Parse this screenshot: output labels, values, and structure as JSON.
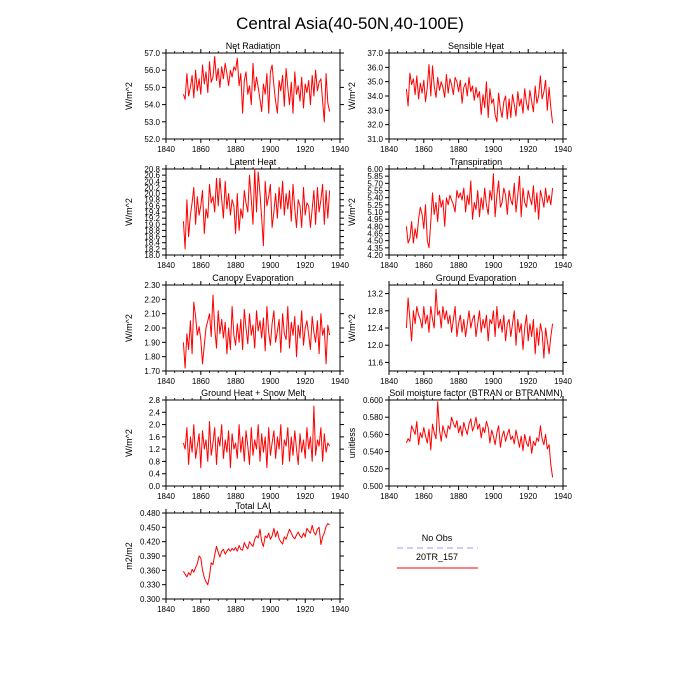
{
  "figure": {
    "title": "Central Asia(40-50N,40-100E)"
  },
  "chart_data": [
    {
      "type": "line",
      "title": "Net Radiation",
      "ylabel": "W/m^2",
      "xlim": [
        1840,
        1940
      ],
      "xticks": [
        1840,
        1860,
        1880,
        1900,
        1920,
        1940
      ],
      "ylim": [
        52.0,
        57.0
      ],
      "yticks": [
        "52.0",
        "53.0",
        "54.0",
        "55.0",
        "56.0",
        "57.0"
      ],
      "x_start": 1850,
      "series": [
        {
          "name": "20TR_157",
          "color": "#ff0000",
          "values": [
            54.6,
            54.3,
            55.8,
            54.5,
            55.0,
            55.7,
            54.4,
            56.0,
            54.8,
            55.5,
            54.6,
            56.3,
            55.2,
            55.9,
            54.7,
            56.5,
            55.3,
            55.6,
            56.8,
            55.4,
            56.1,
            55.0,
            56.2,
            55.5,
            56.4,
            55.8,
            55.1,
            56.0,
            55.6,
            56.2,
            56.0,
            56.7,
            55.1,
            55.8,
            53.5,
            55.4,
            55.9,
            54.6,
            55.1,
            54.0,
            56.4,
            54.8,
            55.6,
            55.0,
            54.3,
            53.6,
            55.2,
            54.6,
            55.8,
            53.5,
            55.9,
            56.3,
            55.1,
            54.2,
            53.5,
            55.4,
            54.8,
            55.7,
            53.9,
            56.1,
            55.0,
            54.0,
            55.3,
            53.5,
            55.9,
            54.6,
            55.1,
            54.2,
            55.6,
            53.8,
            55.2,
            54.7,
            55.4,
            54.0,
            55.7,
            54.5,
            56.0,
            54.8,
            55.3,
            55.5,
            54.2,
            53.0,
            55.8,
            54.1,
            53.6
          ]
        }
      ]
    },
    {
      "type": "line",
      "title": "Sensible Heat",
      "ylabel": "W/m^2",
      "xlim": [
        1840,
        1940
      ],
      "xticks": [
        1840,
        1860,
        1880,
        1900,
        1920,
        1940
      ],
      "ylim": [
        31.0,
        37.0
      ],
      "yticks": [
        "31.0",
        "32.0",
        "33.0",
        "34.0",
        "35.0",
        "36.0",
        "37.0"
      ],
      "x_start": 1850,
      "series": [
        {
          "name": "20TR_157",
          "color": "#ff0000",
          "values": [
            34.5,
            33.3,
            35.6,
            34.8,
            35.2,
            34.1,
            35.4,
            33.8,
            34.9,
            34.2,
            35.1,
            33.6,
            34.6,
            36.2,
            34.0,
            36.1,
            34.7,
            33.9,
            35.3,
            34.4,
            35.0,
            34.6,
            33.9,
            35.5,
            34.2,
            35.2,
            34.8,
            34.1,
            35.3,
            35.0,
            34.3,
            35.1,
            33.5,
            34.6,
            34.9,
            34.0,
            35.3,
            34.3,
            34.7,
            33.7,
            34.6,
            33.9,
            34.3,
            32.7,
            34.1,
            33.2,
            35.0,
            32.5,
            34.5,
            33.5,
            33.8,
            32.7,
            32.2,
            34.2,
            33.1,
            32.5,
            33.6,
            34.0,
            32.4,
            33.8,
            32.5,
            34.1,
            33.4,
            32.6,
            34.3,
            33.3,
            33.8,
            32.8,
            34.5,
            33.5,
            33.0,
            34.4,
            33.6,
            32.9,
            34.7,
            33.5,
            34.0,
            35.4,
            33.8,
            34.3,
            35.1,
            33.0,
            34.6,
            33.2,
            32.1
          ]
        }
      ]
    },
    {
      "type": "line",
      "title": "Latent Heat",
      "ylabel": "W/m^2",
      "xlim": [
        1840,
        1940
      ],
      "xticks": [
        1840,
        1860,
        1880,
        1900,
        1920,
        1940
      ],
      "ylim": [
        18.0,
        20.8
      ],
      "yticks": [
        "18.0",
        "18.2",
        "18.4",
        "18.6",
        "18.8",
        "19.0",
        "19.2",
        "19.4",
        "19.6",
        "19.8",
        "20.0",
        "20.2",
        "20.4",
        "20.6",
        "20.8"
      ],
      "x_start": 1850,
      "series": [
        {
          "name": "20TR_157",
          "color": "#ff0000",
          "values": [
            19.1,
            18.2,
            19.8,
            18.6,
            19.3,
            19.7,
            20.2,
            19.0,
            19.9,
            19.3,
            19.6,
            20.1,
            18.7,
            19.5,
            19.2,
            20.3,
            19.7,
            19.9,
            19.4,
            20.5,
            19.6,
            20.5,
            19.8,
            19.2,
            20.4,
            19.5,
            20.0,
            19.3,
            19.8,
            19.6,
            18.7,
            20.0,
            18.8,
            19.5,
            19.2,
            20.1,
            19.7,
            19.4,
            20.6,
            19.8,
            19.0,
            20.8,
            19.4,
            20.7,
            20.0,
            19.2,
            18.3,
            20.4,
            19.6,
            19.9,
            20.3,
            18.9,
            19.4,
            20.0,
            19.2,
            20.2,
            19.5,
            20.4,
            19.3,
            20.0,
            19.5,
            20.1,
            19.1,
            20.3,
            19.5,
            18.9,
            19.8,
            19.6,
            18.9,
            20.2,
            19.3,
            19.7,
            19.6,
            18.9,
            19.5,
            20.1,
            19.0,
            20.2,
            19.4,
            19.8,
            20.3,
            19.0,
            20.1,
            19.2,
            20.1
          ]
        }
      ]
    },
    {
      "type": "line",
      "title": "Transpiration",
      "ylabel": "W/m^2",
      "xlim": [
        1840,
        1940
      ],
      "xticks": [
        1840,
        1860,
        1880,
        1900,
        1920,
        1940
      ],
      "ylim": [
        4.2,
        6.0
      ],
      "yticks": [
        "4.20",
        "4.35",
        "4.50",
        "4.65",
        "4.80",
        "4.95",
        "5.10",
        "5.25",
        "5.40",
        "5.55",
        "5.70",
        "5.85",
        "6.00"
      ],
      "x_start": 1850,
      "series": [
        {
          "name": "20TR_157",
          "color": "#ff0000",
          "values": [
            4.8,
            4.45,
            4.55,
            4.9,
            4.45,
            4.75,
            4.55,
            4.95,
            5.2,
            5.05,
            4.75,
            5.25,
            4.5,
            4.35,
            4.9,
            5.5,
            5.05,
            5.3,
            4.9,
            5.45,
            5.2,
            5.35,
            4.8,
            5.4,
            5.25,
            5.45,
            5.35,
            5.25,
            5.1,
            5.55,
            5.4,
            5.5,
            5.35,
            5.6,
            5.1,
            5.45,
            5.25,
            5.75,
            4.95,
            5.3,
            5.15,
            5.55,
            5.0,
            5.4,
            5.15,
            5.6,
            5.25,
            5.05,
            5.55,
            5.35,
            5.9,
            5.0,
            5.45,
            5.75,
            5.2,
            5.3,
            5.6,
            5.45,
            5.05,
            5.55,
            5.35,
            5.25,
            5.7,
            5.1,
            5.45,
            5.85,
            5.0,
            5.6,
            5.3,
            5.2,
            5.55,
            5.4,
            5.25,
            5.65,
            5.1,
            5.5,
            4.95,
            5.55,
            5.4,
            5.2,
            5.6,
            5.3,
            5.45,
            5.25,
            5.6
          ]
        }
      ]
    },
    {
      "type": "line",
      "title": "Canopy Evaporation",
      "ylabel": "W/m^2",
      "xlim": [
        1840,
        1940
      ],
      "xticks": [
        1840,
        1860,
        1880,
        1900,
        1920,
        1940
      ],
      "ylim": [
        1.7,
        2.3
      ],
      "yticks": [
        "1.70",
        "1.80",
        "1.90",
        "2.00",
        "2.10",
        "2.20",
        "2.30"
      ],
      "x_start": 1850,
      "series": [
        {
          "name": "20TR_157",
          "color": "#ff0000",
          "values": [
            1.9,
            1.72,
            1.96,
            1.85,
            2.05,
            1.82,
            2.18,
            2.08,
            1.95,
            2.01,
            1.92,
            1.75,
            1.88,
            2.0,
            2.05,
            2.1,
            1.94,
            2.23,
            2.0,
            1.86,
            2.12,
            1.96,
            2.06,
            1.93,
            2.04,
            1.82,
            2.0,
            1.85,
            2.15,
            1.95,
            1.88,
            2.03,
            1.9,
            2.06,
            1.85,
            2.13,
            2.0,
            1.89,
            2.1,
            1.95,
            2.02,
            1.86,
            2.12,
            1.98,
            2.05,
            1.93,
            2.07,
            1.84,
            2.15,
            1.97,
            1.88,
            2.03,
            2.12,
            1.9,
            1.98,
            2.06,
            1.83,
            2.1,
            1.96,
            1.92,
            2.15,
            1.86,
            2.04,
            1.95,
            2.08,
            1.8,
            2.02,
            1.93,
            2.12,
            1.88,
            2.0,
            2.05,
            1.95,
            1.85,
            2.08,
            1.97,
            1.9,
            2.05,
            1.82,
            2.1,
            1.95,
            2.0,
            1.75,
            2.02,
            1.95
          ]
        }
      ]
    },
    {
      "type": "line",
      "title": "Ground Evaporation",
      "ylabel": "W/m^2",
      "xlim": [
        1840,
        1940
      ],
      "xticks": [
        1840,
        1860,
        1880,
        1900,
        1920,
        1940
      ],
      "ylim": [
        11.4,
        13.4
      ],
      "yticks": [
        "11.6",
        "12.0",
        "12.4",
        "12.8",
        "13.2"
      ],
      "x_start": 1850,
      "series": [
        {
          "name": "20TR_157",
          "color": "#ff0000",
          "values": [
            12.4,
            13.1,
            12.6,
            12.1,
            12.8,
            12.5,
            12.9,
            12.7,
            12.6,
            12.4,
            12.9,
            12.5,
            12.7,
            12.3,
            12.9,
            12.6,
            12.4,
            13.3,
            12.7,
            12.8,
            12.4,
            12.9,
            12.6,
            12.8,
            12.5,
            12.7,
            12.3,
            12.6,
            12.9,
            12.2,
            12.5,
            12.7,
            12.3,
            12.6,
            12.2,
            12.5,
            12.8,
            12.4,
            12.6,
            12.7,
            12.2,
            12.5,
            12.8,
            12.3,
            12.6,
            12.4,
            12.7,
            12.1,
            12.6,
            12.5,
            12.8,
            12.2,
            12.9,
            12.4,
            12.6,
            12.3,
            12.7,
            12.1,
            12.5,
            12.6,
            12.2,
            12.5,
            12.8,
            12.0,
            12.6,
            12.3,
            12.5,
            11.9,
            12.4,
            12.7,
            12.1,
            12.5,
            12.2,
            12.6,
            11.8,
            12.4,
            12.0,
            12.5,
            12.3,
            11.7,
            12.4,
            12.1,
            11.8,
            12.2,
            12.5
          ]
        }
      ]
    },
    {
      "type": "line",
      "title": "Ground Heat + Snow Melt",
      "ylabel": "W/m^2",
      "xlim": [
        1840,
        1940
      ],
      "xticks": [
        1840,
        1860,
        1880,
        1900,
        1920,
        1940
      ],
      "ylim": [
        0.0,
        2.8
      ],
      "yticks": [
        "0.0",
        "0.4",
        "0.8",
        "1.2",
        "1.6",
        "2.0",
        "2.4",
        "2.8"
      ],
      "x_start": 1850,
      "series": [
        {
          "name": "20TR_157",
          "color": "#ff0000",
          "values": [
            1.4,
            1.2,
            1.9,
            0.7,
            1.6,
            1.1,
            2.0,
            0.9,
            1.3,
            1.7,
            0.6,
            1.8,
            1.2,
            1.5,
            0.8,
            2.1,
            1.0,
            1.4,
            1.9,
            0.7,
            1.6,
            1.3,
            2.0,
            0.9,
            1.5,
            1.1,
            1.8,
            0.6,
            1.7,
            1.2,
            1.4,
            0.9,
            2.0,
            1.1,
            1.6,
            0.8,
            1.8,
            1.3,
            0.7,
            1.9,
            1.0,
            1.5,
            1.2,
            2.0,
            0.8,
            1.7,
            1.1,
            1.6,
            0.6,
            1.9,
            1.0,
            1.4,
            1.8,
            0.9,
            1.6,
            1.2,
            2.0,
            0.7,
            1.5,
            1.3,
            1.9,
            0.8,
            1.6,
            1.0,
            1.8,
            1.2,
            0.7,
            1.7,
            1.1,
            1.5,
            0.9,
            1.9,
            1.2,
            1.6,
            0.8,
            2.6,
            1.0,
            1.5,
            1.3,
            1.9,
            0.8,
            1.7,
            1.1,
            1.4,
            1.3
          ]
        }
      ]
    },
    {
      "type": "line",
      "title": "Soil moisture factor (BTRAN or BTRANMN)",
      "ylabel": "unitless",
      "xlim": [
        1840,
        1940
      ],
      "xticks": [
        1840,
        1860,
        1880,
        1900,
        1920,
        1940
      ],
      "ylim": [
        0.5,
        0.6
      ],
      "yticks": [
        "0.500",
        "0.520",
        "0.540",
        "0.560",
        "0.580",
        "0.600"
      ],
      "x_start": 1850,
      "series": [
        {
          "name": "20TR_157",
          "color": "#ff0000",
          "values": [
            0.55,
            0.555,
            0.552,
            0.57,
            0.565,
            0.56,
            0.575,
            0.548,
            0.562,
            0.556,
            0.568,
            0.558,
            0.55,
            0.566,
            0.542,
            0.572,
            0.562,
            0.555,
            0.598,
            0.565,
            0.552,
            0.57,
            0.562,
            0.556,
            0.57,
            0.566,
            0.58,
            0.573,
            0.568,
            0.576,
            0.562,
            0.57,
            0.558,
            0.574,
            0.566,
            0.56,
            0.572,
            0.578,
            0.564,
            0.57,
            0.58,
            0.566,
            0.572,
            0.556,
            0.568,
            0.562,
            0.575,
            0.568,
            0.55,
            0.565,
            0.558,
            0.548,
            0.562,
            0.57,
            0.545,
            0.558,
            0.564,
            0.552,
            0.56,
            0.566,
            0.554,
            0.558,
            0.549,
            0.565,
            0.555,
            0.545,
            0.558,
            0.541,
            0.56,
            0.55,
            0.546,
            0.558,
            0.538,
            0.552,
            0.547,
            0.556,
            0.552,
            0.57,
            0.555,
            0.548,
            0.56,
            0.543,
            0.548,
            0.525,
            0.51
          ]
        }
      ]
    },
    {
      "type": "line",
      "title": "Total LAI",
      "ylabel": "m2/m2",
      "xlim": [
        1840,
        1940
      ],
      "xticks": [
        1840,
        1860,
        1880,
        1900,
        1920,
        1940
      ],
      "ylim": [
        0.3,
        0.48
      ],
      "yticks": [
        "0.300",
        "0.330",
        "0.360",
        "0.390",
        "0.420",
        "0.450",
        "0.480"
      ],
      "x_start": 1850,
      "series": [
        {
          "name": "20TR_157",
          "color": "#ff0000",
          "values": [
            0.358,
            0.352,
            0.346,
            0.355,
            0.35,
            0.362,
            0.356,
            0.366,
            0.374,
            0.39,
            0.386,
            0.36,
            0.345,
            0.336,
            0.33,
            0.348,
            0.376,
            0.372,
            0.392,
            0.41,
            0.398,
            0.388,
            0.4,
            0.404,
            0.394,
            0.4,
            0.405,
            0.4,
            0.406,
            0.402,
            0.408,
            0.4,
            0.412,
            0.404,
            0.402,
            0.418,
            0.41,
            0.405,
            0.42,
            0.414,
            0.41,
            0.425,
            0.432,
            0.428,
            0.446,
            0.42,
            0.41,
            0.432,
            0.428,
            0.438,
            0.425,
            0.432,
            0.448,
            0.43,
            0.442,
            0.426,
            0.42,
            0.415,
            0.43,
            0.425,
            0.436,
            0.446,
            0.438,
            0.43,
            0.426,
            0.434,
            0.44,
            0.432,
            0.428,
            0.438,
            0.43,
            0.448,
            0.442,
            0.438,
            0.454,
            0.44,
            0.434,
            0.446,
            0.45,
            0.414,
            0.43,
            0.438,
            0.452,
            0.458,
            0.455
          ]
        }
      ]
    }
  ],
  "legend": {
    "items": [
      {
        "label": "No Obs",
        "color": "#9999ff",
        "style": "dashed"
      },
      {
        "label": "20TR_157",
        "color": "#ff0000",
        "style": "solid"
      }
    ]
  }
}
